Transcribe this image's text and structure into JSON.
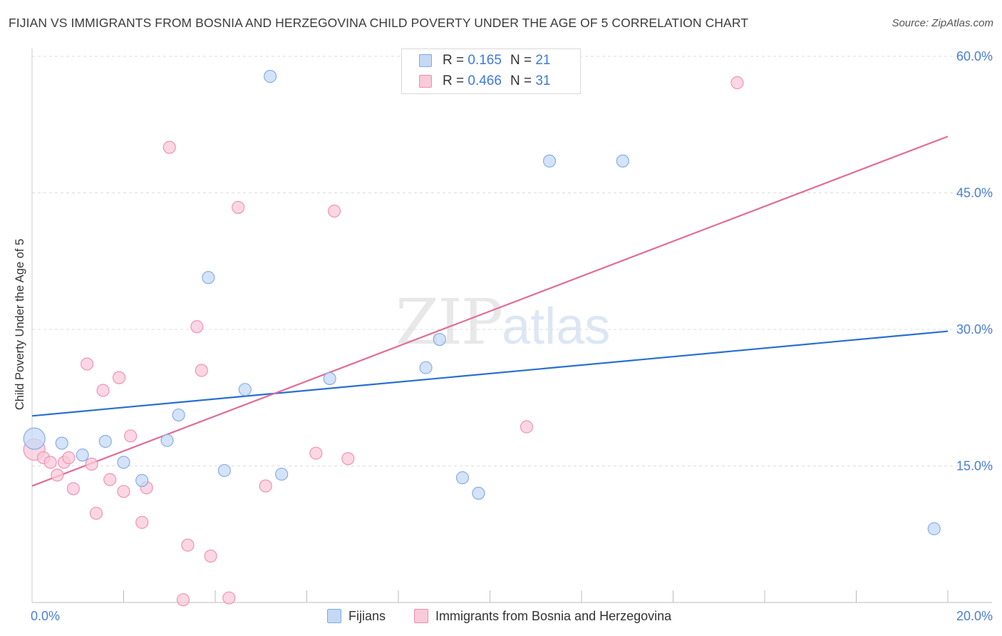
{
  "title": "FIJIAN VS IMMIGRANTS FROM BOSNIA AND HERZEGOVINA CHILD POVERTY UNDER THE AGE OF 5 CORRELATION CHART",
  "source": "Source: ZipAtlas.com",
  "watermark": {
    "zip": "ZIP",
    "atlas": "atlas"
  },
  "legend": {
    "rows": [
      {
        "r_label": "R =",
        "r_value": "0.165",
        "n_label": "N =",
        "n_value": "21"
      },
      {
        "r_label": "R =",
        "r_value": "0.466",
        "n_label": "N =",
        "n_value": "31"
      }
    ]
  },
  "chart_data": {
    "type": "scatter",
    "title": "FIJIAN VS IMMIGRANTS FROM BOSNIA AND HERZEGOVINA CHILD POVERTY UNDER THE AGE OF 5 CORRELATION CHART",
    "xlabel": "",
    "ylabel": "Child Poverty Under the Age of 5",
    "xlim": [
      0,
      20
    ],
    "ylim": [
      0,
      60
    ],
    "x_tick_labels": [
      "0.0%",
      "20.0%"
    ],
    "y_ticks": [
      15,
      30,
      45,
      60
    ],
    "y_tick_labels": [
      "15.0%",
      "30.0%",
      "45.0%",
      "60.0%"
    ],
    "grid": true,
    "legend_position": "top-center",
    "series": [
      {
        "name": "Fijians",
        "color": "#7fa8e6",
        "fill": "#c5d9f5",
        "line_color": "#2a6fd0",
        "r": 0.165,
        "n": 21,
        "trend": [
          [
            0,
            20.5
          ],
          [
            20,
            29.8
          ]
        ],
        "points": [
          [
            0.05,
            18.0
          ],
          [
            0.65,
            17.5
          ],
          [
            1.1,
            16.2
          ],
          [
            1.6,
            17.7
          ],
          [
            2.0,
            15.4
          ],
          [
            2.4,
            13.4
          ],
          [
            2.95,
            17.8
          ],
          [
            3.2,
            20.6
          ],
          [
            3.85,
            35.7
          ],
          [
            4.2,
            14.5
          ],
          [
            4.65,
            23.4
          ],
          [
            5.2,
            57.8
          ],
          [
            5.45,
            14.1
          ],
          [
            6.5,
            24.6
          ],
          [
            8.6,
            25.8
          ],
          [
            8.9,
            28.9
          ],
          [
            9.4,
            13.7
          ],
          [
            9.75,
            12.0
          ],
          [
            11.3,
            48.5
          ],
          [
            12.9,
            48.5
          ],
          [
            19.7,
            8.1
          ]
        ]
      },
      {
        "name": "Immigrants from Bosnia and Herzegovina",
        "color": "#f08cad",
        "fill": "#f9cad9",
        "line_color": "#e06d97",
        "r": 0.466,
        "n": 31,
        "trend": [
          [
            0,
            12.8
          ],
          [
            20,
            51.2
          ]
        ],
        "points": [
          [
            0.05,
            16.8
          ],
          [
            0.25,
            15.9
          ],
          [
            0.4,
            15.4
          ],
          [
            0.55,
            14.0
          ],
          [
            0.7,
            15.4
          ],
          [
            0.8,
            15.9
          ],
          [
            0.9,
            12.5
          ],
          [
            1.2,
            26.2
          ],
          [
            1.3,
            15.2
          ],
          [
            1.4,
            9.8
          ],
          [
            1.55,
            23.3
          ],
          [
            1.7,
            13.5
          ],
          [
            1.9,
            24.7
          ],
          [
            2.0,
            12.2
          ],
          [
            2.15,
            18.3
          ],
          [
            2.4,
            8.8
          ],
          [
            2.5,
            12.6
          ],
          [
            3.0,
            50.0
          ],
          [
            3.3,
            0.3
          ],
          [
            3.4,
            6.3
          ],
          [
            3.6,
            30.3
          ],
          [
            3.7,
            25.5
          ],
          [
            3.9,
            5.1
          ],
          [
            4.3,
            0.5
          ],
          [
            4.5,
            43.4
          ],
          [
            5.1,
            12.8
          ],
          [
            6.2,
            16.4
          ],
          [
            6.6,
            43.0
          ],
          [
            6.9,
            15.8
          ],
          [
            10.8,
            19.3
          ],
          [
            15.4,
            57.1
          ]
        ]
      }
    ]
  }
}
